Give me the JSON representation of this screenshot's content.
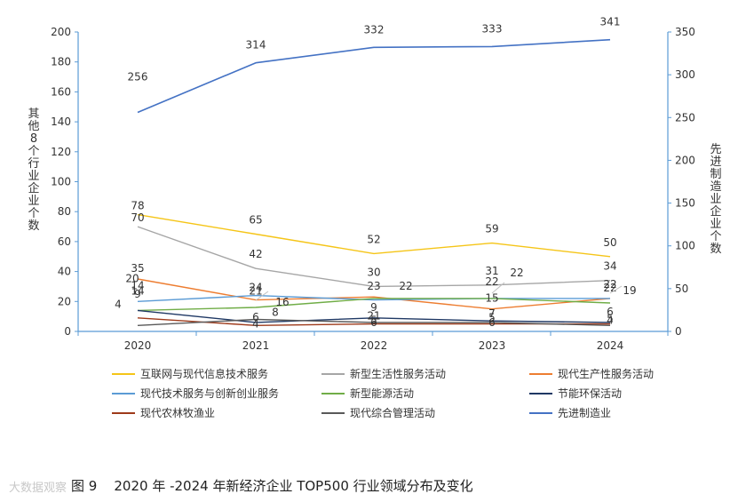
{
  "chart_data": {
    "type": "line",
    "title": "图 9    2020 年 -2024 年新经济企业 TOP500 行业领域分布及变化",
    "categories": [
      "2020",
      "2021",
      "2022",
      "2023",
      "2024"
    ],
    "left_axis": {
      "label": "其他8个行业企业个数",
      "range": [
        0,
        200
      ],
      "ticks": [
        "0",
        "20",
        "40",
        "60",
        "80",
        "100",
        "120",
        "140",
        "160",
        "180",
        "200"
      ]
    },
    "right_axis": {
      "label": "先进制造业企业个数",
      "range": [
        0,
        350
      ],
      "ticks": [
        "0",
        "50",
        "100",
        "150",
        "200",
        "250",
        "300",
        "350"
      ]
    },
    "series": [
      {
        "name": "互联网与现代信息技术服务",
        "color": "#f5c518",
        "axis": "left",
        "values": [
          78,
          65,
          52,
          59,
          50
        ],
        "labels": [
          "78",
          "65",
          "52",
          "59",
          "50"
        ]
      },
      {
        "name": "新型生活性服务活动",
        "color": "#a6a6a6",
        "axis": "left",
        "values": [
          70,
          42,
          30,
          31,
          34
        ],
        "labels": [
          "70",
          "42",
          "30",
          "31",
          "34"
        ]
      },
      {
        "name": "现代生产性服务活动",
        "color": "#ed7d31",
        "axis": "left",
        "values": [
          35,
          21,
          23,
          15,
          22
        ],
        "labels": [
          "35",
          "21",
          "23",
          "15",
          "22"
        ]
      },
      {
        "name": "现代技术服务与创新创业服务",
        "color": "#5b9bd5",
        "axis": "left",
        "values": [
          20,
          24,
          21,
          22,
          22
        ],
        "labels": [
          "20",
          "24",
          "21",
          "22",
          "22"
        ]
      },
      {
        "name": "新型能源活动",
        "color": "#70ad47",
        "axis": "left",
        "values": [
          14,
          16,
          22,
          22,
          19
        ],
        "labels": [
          "14",
          "16",
          "22",
          "22",
          "19"
        ]
      },
      {
        "name": "节能环保活动",
        "color": "#1f3864",
        "axis": "left",
        "values": [
          14,
          6,
          9,
          7,
          6
        ],
        "labels": [
          "14",
          "6",
          "9",
          "7",
          "6"
        ]
      },
      {
        "name": "现代农林牧渔业",
        "color": "#9e3a1a",
        "axis": "left",
        "values": [
          9,
          4,
          5,
          5,
          5
        ],
        "labels": [
          "9",
          "4",
          "5",
          "5",
          "5"
        ]
      },
      {
        "name": "现代综合管理活动",
        "color": "#595959",
        "axis": "left",
        "values": [
          4,
          8,
          6,
          6,
          4
        ],
        "labels": [
          "4",
          "8",
          "6",
          "6",
          "4"
        ]
      },
      {
        "name": "先进制造业",
        "color": "#4472c4",
        "axis": "right",
        "values": [
          256,
          314,
          332,
          333,
          341
        ],
        "labels": [
          "256",
          "314",
          "332",
          "333",
          "341"
        ]
      }
    ],
    "legend_position": "bottom"
  },
  "watermark": "大数据观察"
}
